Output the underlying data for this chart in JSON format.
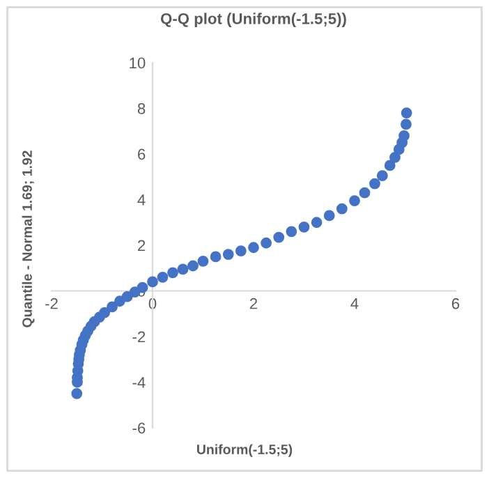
{
  "chart_data": {
    "type": "scatter",
    "title": "Q-Q plot (Uniform(-1.5;5))",
    "xlabel": "Uniform(-1.5;5)",
    "ylabel": "Quantile - Normal 1.69; 1.92",
    "x": [
      -1.5,
      -1.49,
      -1.49,
      -1.48,
      -1.47,
      -1.46,
      -1.45,
      -1.43,
      -1.4,
      -1.37,
      -1.33,
      -1.28,
      -1.22,
      -1.15,
      -1.05,
      -0.95,
      -0.8,
      -0.65,
      -0.5,
      -0.35,
      -0.2,
      0,
      0.2,
      0.4,
      0.6,
      0.8,
      1.0,
      1.25,
      1.5,
      1.75,
      2.0,
      2.25,
      2.5,
      2.75,
      3.0,
      3.25,
      3.5,
      3.75,
      4.0,
      4.2,
      4.4,
      4.55,
      4.7,
      4.8,
      4.88,
      4.94,
      4.98,
      5.02,
      5.03
    ],
    "values": [
      -4.5,
      -4.0,
      -3.8,
      -3.5,
      -3.2,
      -3.0,
      -2.8,
      -2.6,
      -2.35,
      -2.15,
      -1.95,
      -1.75,
      -1.55,
      -1.35,
      -1.15,
      -0.95,
      -0.7,
      -0.45,
      -0.25,
      -0.05,
      0.15,
      0.4,
      0.6,
      0.8,
      0.95,
      1.1,
      1.3,
      1.5,
      1.6,
      1.75,
      1.9,
      2.1,
      2.35,
      2.6,
      2.8,
      3.0,
      3.3,
      3.6,
      3.95,
      4.3,
      4.7,
      5.05,
      5.5,
      5.85,
      6.2,
      6.5,
      6.8,
      7.3,
      7.8
    ],
    "color": "#4472c4",
    "marker": "circle",
    "xlim": [
      -2,
      6
    ],
    "ylim": [
      -6,
      10
    ],
    "xticks": [
      -2,
      0,
      2,
      4,
      6
    ],
    "yticks": [
      -6,
      -4,
      -2,
      0,
      2,
      4,
      6,
      8,
      10
    ],
    "grid": false,
    "legend": false
  }
}
